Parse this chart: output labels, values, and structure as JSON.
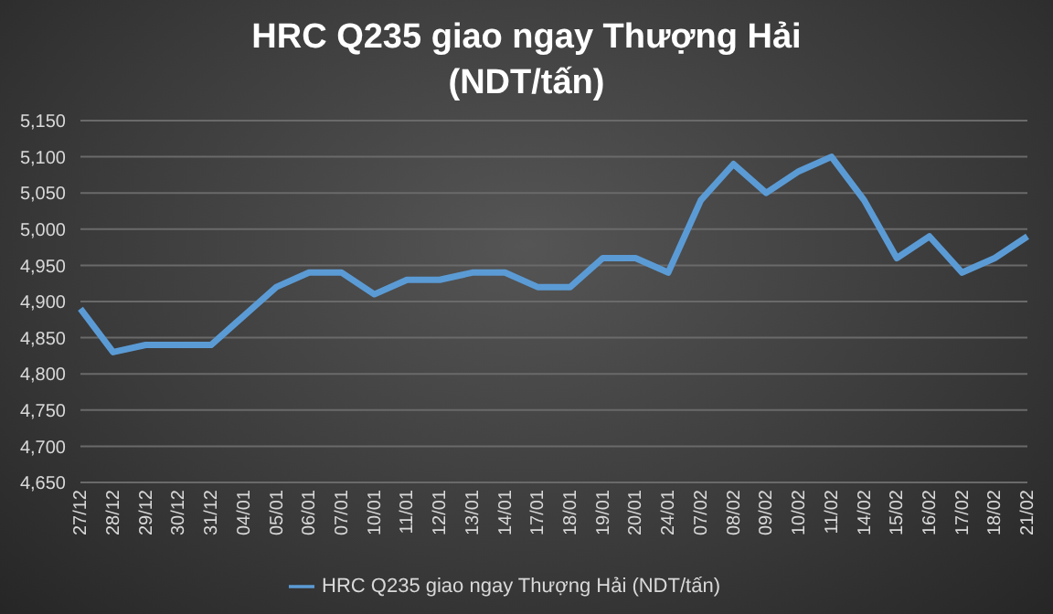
{
  "chart_data": {
    "type": "line",
    "title": "HRC Q235 giao ngay Thượng Hải (NDT/tấn)",
    "categories": [
      "27/12",
      "28/12",
      "29/12",
      "30/12",
      "31/12",
      "04/01",
      "05/01",
      "06/01",
      "07/01",
      "10/01",
      "11/01",
      "12/01",
      "13/01",
      "14/01",
      "17/01",
      "18/01",
      "19/01",
      "20/01",
      "24/01",
      "07/02",
      "08/02",
      "09/02",
      "10/02",
      "11/02",
      "14/02",
      "15/02",
      "16/02",
      "17/02",
      "18/02",
      "21/02"
    ],
    "series": [
      {
        "name": "HRC Q235 giao ngay Thượng Hải (NDT/tấn)",
        "color": "#5b9bd5",
        "values": [
          4890,
          4830,
          4840,
          4840,
          4840,
          4880,
          4920,
          4940,
          4940,
          4910,
          4930,
          4930,
          4940,
          4940,
          4920,
          4920,
          4960,
          4960,
          4940,
          5040,
          5090,
          5050,
          5080,
          5100,
          5040,
          4960,
          4990,
          4940,
          4960,
          4990
        ]
      }
    ],
    "ylim": [
      4650,
      5150
    ],
    "yticks": [
      {
        "value": 4650,
        "label": "4,650"
      },
      {
        "value": 4700,
        "label": "4,700"
      },
      {
        "value": 4750,
        "label": "4,750"
      },
      {
        "value": 4800,
        "label": "4,800"
      },
      {
        "value": 4850,
        "label": "4,850"
      },
      {
        "value": 4900,
        "label": "4,900"
      },
      {
        "value": 4950,
        "label": "4,950"
      },
      {
        "value": 5000,
        "label": "5,000"
      },
      {
        "value": 5050,
        "label": "5,050"
      },
      {
        "value": 5100,
        "label": "5,100"
      },
      {
        "value": 5150,
        "label": "5,150"
      }
    ],
    "grid": "y",
    "legend": "bottom",
    "marker": "none",
    "line_style": "solid"
  }
}
